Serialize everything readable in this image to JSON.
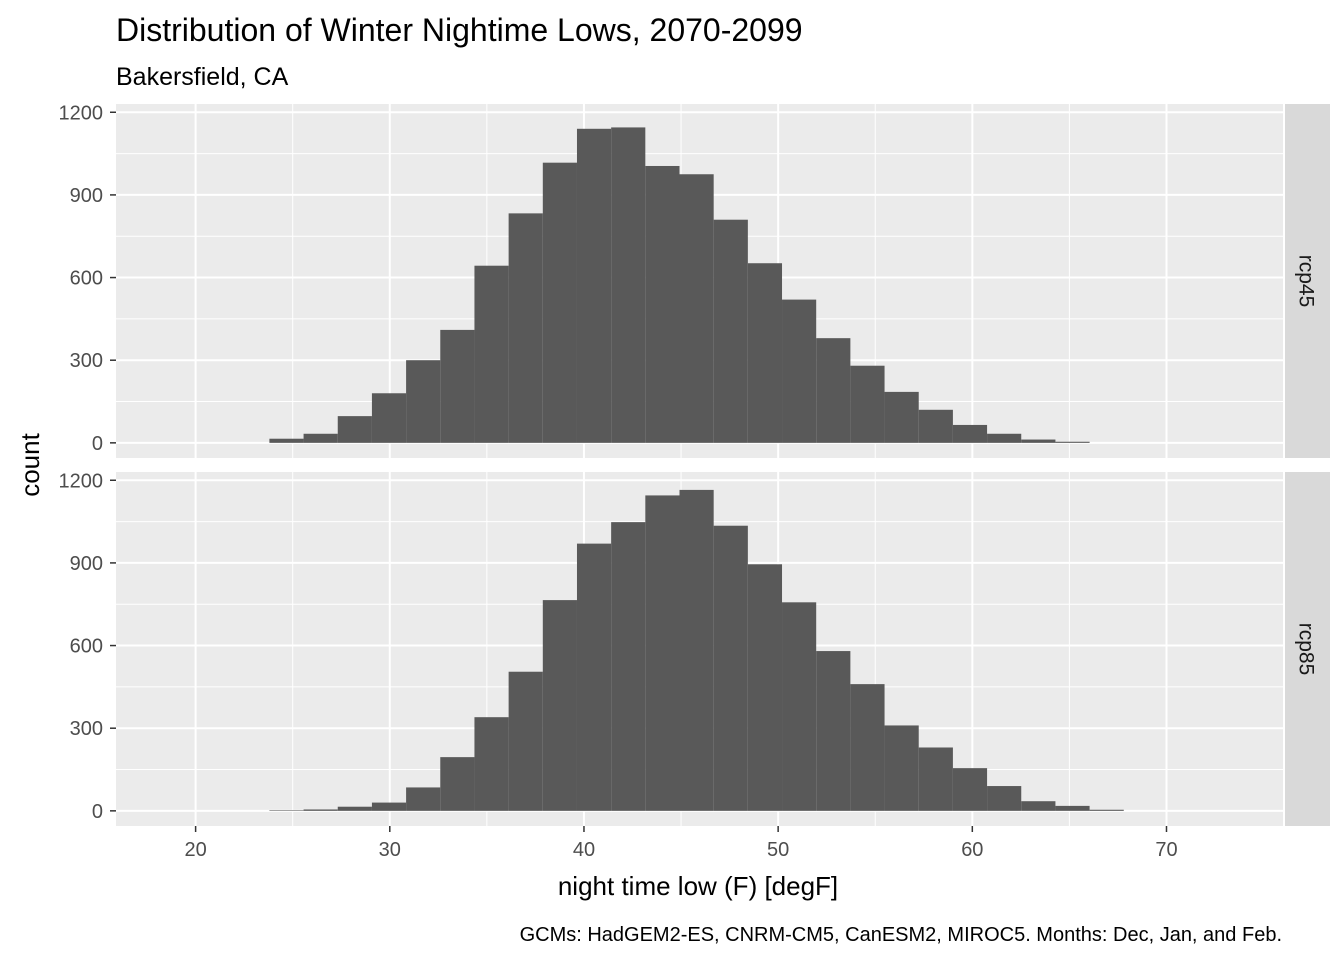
{
  "chart_data": {
    "type": "bar",
    "title": "Distribution of Winter Nightime Lows, 2070-2099",
    "subtitle": "Bakersfield, CA",
    "xlabel": "night time low (F) [degF]",
    "ylabel": "count",
    "caption": "GCMs: HadGEM2-ES, CNRM-CM5, CanESM2, MIROC5. Months: Dec, Jan, and Feb.",
    "xlim": [
      15.9,
      76
    ],
    "ylim": [
      -55,
      1230
    ],
    "x_ticks": [
      20,
      30,
      40,
      50,
      60,
      70
    ],
    "y_ticks": [
      0,
      300,
      600,
      900,
      1200
    ],
    "bin_width": 1.76,
    "grid": true,
    "colors": {
      "bar": "#595959",
      "panel": "#ebebeb",
      "grid_major": "#ffffff",
      "strip": "#d9d9d9",
      "tick_text": "#4d4d4d"
    },
    "panels": [
      {
        "strip_label": "rcp45",
        "bin_starts": [
          23.8,
          25.56,
          27.32,
          29.08,
          30.84,
          32.6,
          34.36,
          36.12,
          37.88,
          39.64,
          41.4,
          43.16,
          44.92,
          46.68,
          48.44,
          50.2,
          51.96,
          53.72,
          55.48,
          57.24,
          59.0,
          60.76,
          62.52,
          64.28
        ],
        "values": [
          15,
          33,
          97,
          180,
          300,
          410,
          643,
          833,
          1017,
          1140,
          1145,
          1005,
          975,
          810,
          652,
          520,
          380,
          280,
          185,
          120,
          65,
          33,
          12,
          4
        ]
      },
      {
        "strip_label": "rcp85",
        "bin_starts": [
          23.8,
          25.56,
          27.32,
          29.08,
          30.84,
          32.6,
          34.36,
          36.12,
          37.88,
          39.64,
          41.4,
          43.16,
          44.92,
          46.68,
          48.44,
          50.2,
          51.96,
          53.72,
          55.48,
          57.24,
          59.0,
          60.76,
          62.52,
          64.28,
          66.04
        ],
        "values": [
          2,
          5,
          15,
          30,
          85,
          195,
          340,
          505,
          765,
          970,
          1048,
          1145,
          1165,
          1035,
          895,
          757,
          580,
          460,
          310,
          230,
          155,
          90,
          35,
          18,
          4
        ]
      }
    ]
  }
}
